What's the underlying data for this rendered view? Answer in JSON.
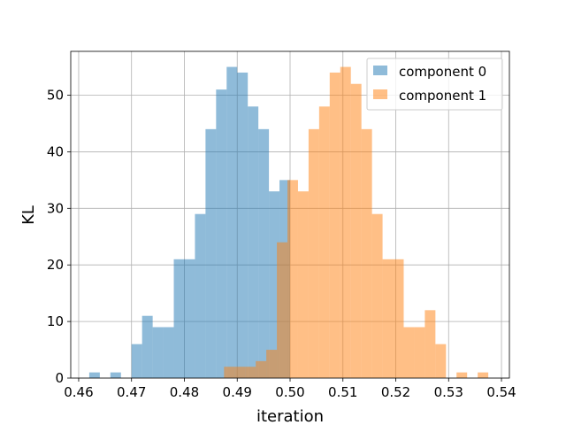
{
  "chart_data": {
    "type": "histogram",
    "xlabel": "iteration",
    "ylabel": "KL",
    "xlim": [
      0.4585,
      0.5415
    ],
    "ylim": [
      0,
      57.75
    ],
    "xticks": [
      0.46,
      0.47,
      0.48,
      0.49,
      0.5,
      0.51,
      0.52,
      0.53,
      0.54
    ],
    "xtick_labels": [
      "0.46",
      "0.47",
      "0.48",
      "0.49",
      "0.50",
      "0.51",
      "0.52",
      "0.53",
      "0.54"
    ],
    "yticks": [
      0,
      10,
      20,
      30,
      40,
      50
    ],
    "ytick_labels": [
      "0",
      "10",
      "20",
      "30",
      "40",
      "50"
    ],
    "grid": true,
    "legend_position": "top-right",
    "alpha": 0.5,
    "series": [
      {
        "name": "component 0",
        "color": "#1f77b4",
        "bin_edges": [
          0.462,
          0.464,
          0.466,
          0.468,
          0.47,
          0.472,
          0.474,
          0.476,
          0.478,
          0.48,
          0.482,
          0.484,
          0.486,
          0.488,
          0.49,
          0.492,
          0.494,
          0.496,
          0.498,
          0.5
        ],
        "counts": [
          1,
          0,
          1,
          0,
          6,
          11,
          9,
          9,
          21,
          21,
          29,
          44,
          51,
          55,
          54,
          48,
          44,
          33,
          35
        ]
      },
      {
        "name": "component 1",
        "color": "#ff7f0e",
        "bin_edges": [
          0.4875,
          0.4895,
          0.4915,
          0.4935,
          0.4955,
          0.4975,
          0.4995,
          0.5015,
          0.5035,
          0.5055,
          0.5075,
          0.5095,
          0.5115,
          0.5135,
          0.5155,
          0.5175,
          0.5195,
          0.5215,
          0.5235,
          0.5255,
          0.5275,
          0.5295,
          0.5315,
          0.5335,
          0.5355,
          0.5375
        ],
        "counts": [
          2,
          2,
          2,
          3,
          5,
          24,
          35,
          33,
          44,
          48,
          54,
          55,
          52,
          44,
          29,
          21,
          21,
          9,
          9,
          12,
          6,
          0,
          1,
          0,
          1
        ]
      }
    ]
  }
}
